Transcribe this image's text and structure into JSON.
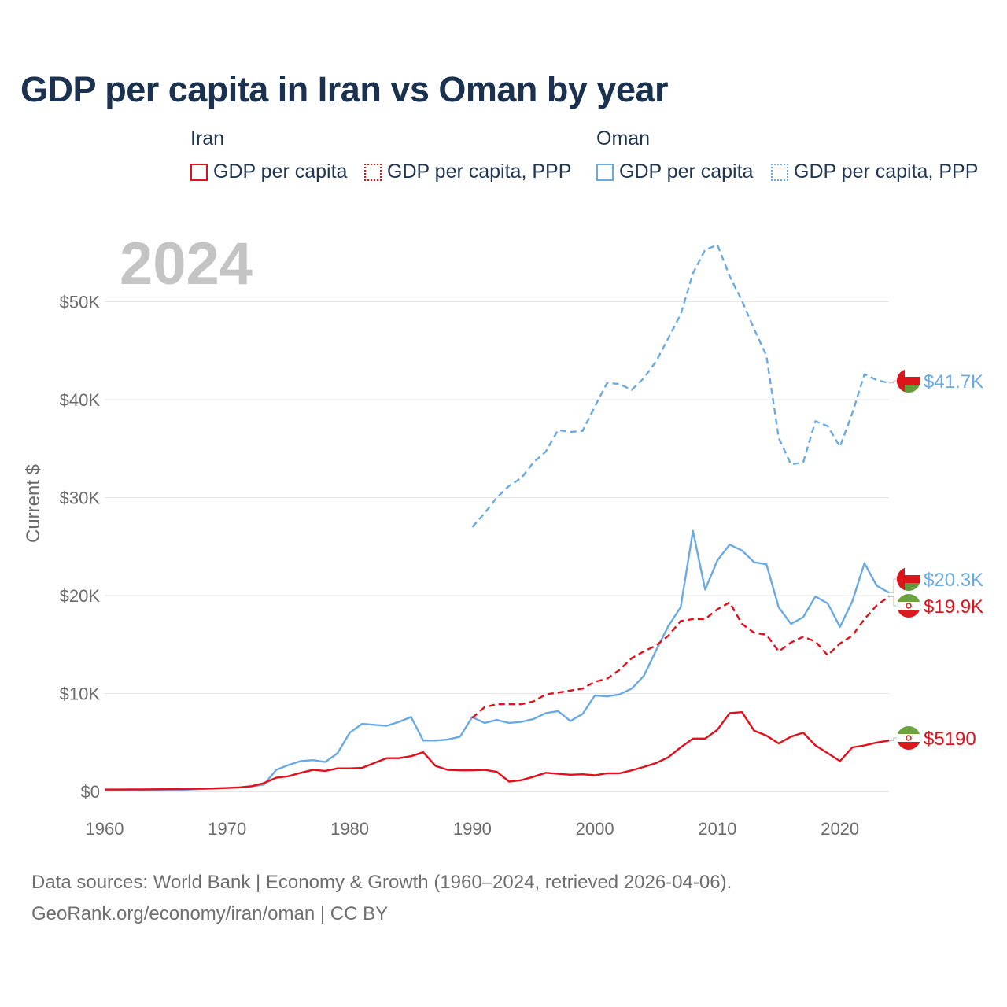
{
  "title": "GDP per capita in Iran vs Oman by year",
  "legend": {
    "groups": [
      {
        "title": "Iran",
        "items": [
          {
            "label": "GDP per capita",
            "style": "solid",
            "color": "#e3101b"
          },
          {
            "label": "GDP per capita, PPP",
            "style": "dotted",
            "color": "#e3101b"
          }
        ]
      },
      {
        "title": "Oman",
        "items": [
          {
            "label": "GDP per capita",
            "style": "solid",
            "color": "#6aaae4"
          },
          {
            "label": "GDP per capita, PPP",
            "style": "dotted",
            "color": "#6aaae4"
          }
        ]
      }
    ]
  },
  "year_label": "2024",
  "source_line1": "Data sources: World Bank | Economy & Growth (1960–2024, retrieved 2026-04-06).",
  "source_line2": "GeoRank.org/economy/iran/oman | CC BY",
  "flag_icons": {
    "iran": "iran-flag-icon",
    "oman": "oman-flag-icon"
  },
  "chart_data": {
    "type": "line",
    "title": "GDP per capita in Iran vs Oman by year",
    "xlabel": "",
    "ylabel": "Current $",
    "xlim": [
      1960,
      2024
    ],
    "ylim": [
      0,
      55000
    ],
    "x_ticks": [
      1960,
      1970,
      1980,
      1990,
      2000,
      2010,
      2020
    ],
    "y_ticks": [
      {
        "value": 0,
        "label": "$0"
      },
      {
        "value": 10000,
        "label": "$10K"
      },
      {
        "value": 20000,
        "label": "$20K"
      },
      {
        "value": 30000,
        "label": "$30K"
      },
      {
        "value": 40000,
        "label": "$40K"
      },
      {
        "value": 50000,
        "label": "$50K"
      }
    ],
    "grid": true,
    "series": [
      {
        "name": "Oman GDP per capita, PPP",
        "country": "Oman",
        "color": "#6aaae4",
        "dash": "dashed",
        "end_label": "$41.7K",
        "x": [
          1990,
          1991,
          1992,
          1993,
          1994,
          1995,
          1996,
          1997,
          1998,
          1999,
          2000,
          2001,
          2002,
          2003,
          2004,
          2005,
          2006,
          2007,
          2008,
          2009,
          2010,
          2011,
          2012,
          2013,
          2014,
          2015,
          2016,
          2017,
          2018,
          2019,
          2020,
          2021,
          2022,
          2023,
          2024
        ],
        "values": [
          27000,
          28400,
          30000,
          31200,
          32000,
          33600,
          34700,
          36900,
          36700,
          36800,
          39300,
          41700,
          41600,
          41000,
          42200,
          43900,
          46300,
          48700,
          52900,
          55300,
          55800,
          52600,
          50100,
          47200,
          44500,
          36100,
          33400,
          33600,
          37800,
          37300,
          35200,
          38600,
          42600,
          42000,
          41700
        ]
      },
      {
        "name": "Oman GDP per capita",
        "country": "Oman",
        "color": "#6aaae4",
        "dash": "solid",
        "end_label": "$20.3K",
        "x": [
          1960,
          1961,
          1962,
          1963,
          1964,
          1965,
          1966,
          1967,
          1968,
          1969,
          1970,
          1971,
          1972,
          1973,
          1974,
          1975,
          1976,
          1977,
          1978,
          1979,
          1980,
          1981,
          1982,
          1983,
          1984,
          1985,
          1986,
          1987,
          1988,
          1989,
          1990,
          1991,
          1992,
          1993,
          1994,
          1995,
          1996,
          1997,
          1998,
          1999,
          2000,
          2001,
          2002,
          2003,
          2004,
          2005,
          2006,
          2007,
          2008,
          2009,
          2010,
          2011,
          2012,
          2013,
          2014,
          2015,
          2016,
          2017,
          2018,
          2019,
          2020,
          2021,
          2022,
          2023,
          2024
        ],
        "values": [
          100,
          100,
          100,
          110,
          110,
          120,
          130,
          200,
          260,
          300,
          350,
          420,
          520,
          700,
          2200,
          2700,
          3100,
          3200,
          3000,
          3900,
          6000,
          6900,
          6800,
          6700,
          7100,
          7600,
          5200,
          5200,
          5300,
          5600,
          7600,
          7000,
          7300,
          7000,
          7100,
          7400,
          8000,
          8200,
          7200,
          7900,
          9800,
          9700,
          9900,
          10500,
          11800,
          14400,
          16900,
          18800,
          26600,
          20600,
          23600,
          25200,
          24600,
          23400,
          23200,
          18800,
          17100,
          17800,
          19900,
          19200,
          16800,
          19400,
          23300,
          21000,
          20300
        ]
      },
      {
        "name": "Iran GDP per capita, PPP",
        "country": "Iran",
        "color": "#e3101b",
        "dash": "dashed",
        "end_label": "$19.9K",
        "x": [
          1990,
          1991,
          1992,
          1993,
          1994,
          1995,
          1996,
          1997,
          1998,
          1999,
          2000,
          2001,
          2002,
          2003,
          2004,
          2005,
          2006,
          2007,
          2008,
          2009,
          2010,
          2011,
          2012,
          2013,
          2014,
          2015,
          2016,
          2017,
          2018,
          2019,
          2020,
          2021,
          2022,
          2023,
          2024
        ],
        "values": [
          7500,
          8600,
          8900,
          8900,
          8900,
          9200,
          9900,
          10100,
          10300,
          10500,
          11200,
          11500,
          12400,
          13600,
          14300,
          14900,
          15900,
          17400,
          17600,
          17600,
          18600,
          19300,
          17100,
          16200,
          16000,
          14300,
          15200,
          15800,
          15300,
          13900,
          15100,
          15900,
          17600,
          19000,
          19900
        ]
      },
      {
        "name": "Iran GDP per capita",
        "country": "Iran",
        "color": "#e3101b",
        "dash": "solid",
        "end_label": "$5190",
        "x": [
          1960,
          1961,
          1962,
          1963,
          1964,
          1965,
          1966,
          1967,
          1968,
          1969,
          1970,
          1971,
          1972,
          1973,
          1974,
          1975,
          1976,
          1977,
          1978,
          1979,
          1980,
          1981,
          1982,
          1983,
          1984,
          1985,
          1986,
          1987,
          1988,
          1989,
          1990,
          1991,
          1992,
          1993,
          1994,
          1995,
          1996,
          1997,
          1998,
          1999,
          2000,
          2001,
          2002,
          2003,
          2004,
          2005,
          2006,
          2007,
          2008,
          2009,
          2010,
          2011,
          2012,
          2013,
          2014,
          2015,
          2016,
          2017,
          2018,
          2019,
          2020,
          2021,
          2022,
          2023,
          2024
        ],
        "values": [
          190,
          195,
          200,
          205,
          215,
          230,
          245,
          265,
          290,
          310,
          350,
          410,
          540,
          850,
          1400,
          1550,
          1900,
          2200,
          2100,
          2350,
          2350,
          2400,
          2900,
          3400,
          3400,
          3600,
          4000,
          2600,
          2200,
          2150,
          2150,
          2200,
          2000,
          1000,
          1150,
          1500,
          1900,
          1800,
          1700,
          1750,
          1650,
          1850,
          1850,
          2150,
          2500,
          2900,
          3500,
          4500,
          5400,
          5400,
          6300,
          8000,
          8100,
          6200,
          5700,
          4900,
          5600,
          6000,
          4700,
          3900,
          3100,
          4500,
          4700,
          5000,
          5190
        ]
      }
    ]
  }
}
